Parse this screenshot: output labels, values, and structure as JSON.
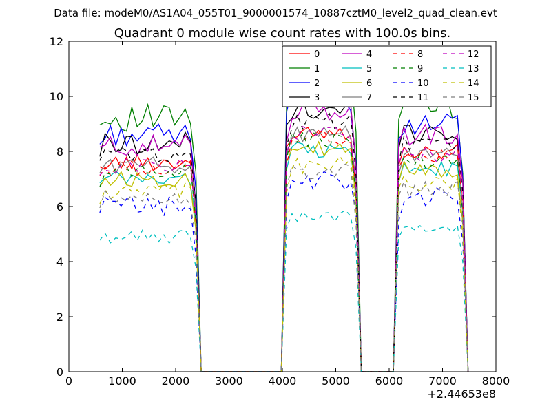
{
  "chart_data": {
    "type": "line",
    "suptitle": "Data file: modeM0/AS1A04_055T01_9000001574_10887cztM0_level2_quad_clean.evt",
    "title": "Quadrant 0 module wise count rates with 100.0s bins.",
    "xlabel": "",
    "ylabel": "",
    "x_offset_label": "+2.44653e8",
    "xlim": [
      0,
      8000
    ],
    "ylim": [
      0,
      12
    ],
    "xticks": [
      0,
      1000,
      2000,
      3000,
      4000,
      5000,
      6000,
      7000,
      8000
    ],
    "yticks": [
      0,
      2,
      4,
      6,
      8,
      10,
      12
    ],
    "legend_location": "top-right",
    "legend_columns": 4,
    "x": [
      579,
      679,
      779,
      879,
      979,
      1079,
      1179,
      1279,
      1379,
      1479,
      1579,
      1679,
      1779,
      1879,
      1979,
      2079,
      2179,
      2279,
      2379,
      2479,
      2579,
      2679,
      2779,
      2879,
      2979,
      3079,
      3179,
      3279,
      3379,
      3479,
      3579,
      3679,
      3779,
      3879,
      3979,
      4079,
      4179,
      4279,
      4379,
      4479,
      4579,
      4679,
      4779,
      4879,
      4979,
      5079,
      5179,
      5279,
      5379,
      5479,
      5579,
      5679,
      5779,
      5879,
      5979,
      6079,
      6179,
      6279,
      6379,
      6479,
      6579,
      6679,
      6779,
      6879,
      6979,
      7079,
      7179,
      7279,
      7379,
      7479
    ],
    "series": [
      {
        "name": "0",
        "color": "#ff0000",
        "dash": "solid",
        "plateau": 7.6,
        "amp": 0.3
      },
      {
        "name": "1",
        "color": "#007f00",
        "dash": "solid",
        "plateau": 9.2,
        "amp": 0.5
      },
      {
        "name": "2",
        "color": "#0000ff",
        "dash": "solid",
        "plateau": 8.6,
        "amp": 0.4
      },
      {
        "name": "3",
        "color": "#000000",
        "dash": "solid",
        "plateau": 8.3,
        "amp": 0.4
      },
      {
        "name": "4",
        "color": "#bf00bf",
        "dash": "solid",
        "plateau": 8.2,
        "amp": 0.4
      },
      {
        "name": "5",
        "color": "#00bfbf",
        "dash": "solid",
        "plateau": 7.0,
        "amp": 0.3
      },
      {
        "name": "6",
        "color": "#bfbf00",
        "dash": "solid",
        "plateau": 7.0,
        "amp": 0.3
      },
      {
        "name": "7",
        "color": "#7f7f7f",
        "dash": "solid",
        "plateau": 7.5,
        "amp": 0.3
      },
      {
        "name": "8",
        "color": "#ff0000",
        "dash": "dashed",
        "plateau": 7.4,
        "amp": 0.3
      },
      {
        "name": "9",
        "color": "#007f00",
        "dash": "dashed",
        "plateau": 7.3,
        "amp": 0.3
      },
      {
        "name": "10",
        "color": "#0000ff",
        "dash": "dashed",
        "plateau": 6.0,
        "amp": 0.4
      },
      {
        "name": "11",
        "color": "#000000",
        "dash": "dashed",
        "plateau": 7.9,
        "amp": 0.3
      },
      {
        "name": "12",
        "color": "#bf00bf",
        "dash": "dashed",
        "plateau": 7.5,
        "amp": 0.3
      },
      {
        "name": "13",
        "color": "#00bfbf",
        "dash": "dashed",
        "plateau": 4.9,
        "amp": 0.25
      },
      {
        "name": "14",
        "color": "#bfbf00",
        "dash": "dashed",
        "plateau": 6.5,
        "amp": 0.35
      },
      {
        "name": "15",
        "color": "#7f7f7f",
        "dash": "dashed",
        "plateau": 6.3,
        "amp": 0.3
      }
    ],
    "segments": [
      {
        "start": 579,
        "end": 2379,
        "level": 1.0
      },
      {
        "start": 4079,
        "end": 5379,
        "level": 1.15
      },
      {
        "start": 6179,
        "end": 7379,
        "level": 1.05
      }
    ]
  }
}
